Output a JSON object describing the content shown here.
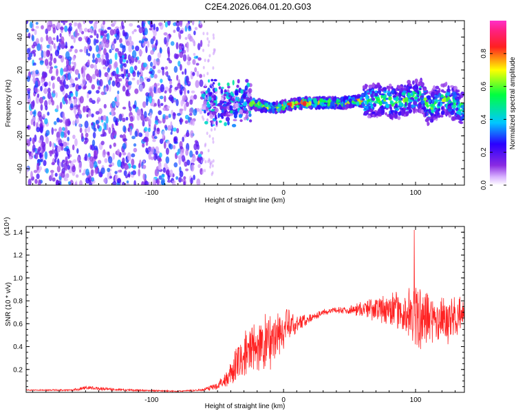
{
  "title": "C2E4.2026.064.01.20.G03",
  "colors": {
    "snr_line": "#ff2222",
    "spectral_blue": "#3c00d8",
    "spectral_purple": "#8a3cff",
    "axis": "#000000"
  },
  "chart_data": [
    {
      "type": "heatmap",
      "title": "C2E4.2026.064.01.20.G03",
      "xlabel": "Height of straight line (km)",
      "ylabel": "Frequency (Hz)",
      "xlim": [
        -195,
        137
      ],
      "ylim": [
        -50,
        50
      ],
      "x_ticks": [
        -100,
        0,
        100
      ],
      "x_tick_labels": [
        "-100",
        "0",
        "100"
      ],
      "y_ticks": [
        -40,
        -20,
        0,
        20,
        40
      ],
      "y_tick_labels": [
        "-40",
        "-20",
        "0",
        "20",
        "40"
      ],
      "colorbar": {
        "label": "Normalized spectral amplitude",
        "range": [
          0,
          1
        ],
        "ticks": [
          0.0,
          0.2,
          0.4,
          0.6,
          0.8
        ],
        "tick_labels": [
          "0.0",
          "0.2",
          "0.4",
          "0.6",
          "0.8"
        ],
        "colormap": "rainbow (magenta-blue-cyan-green-yellow-red)"
      },
      "regions": [
        {
          "x_range": [
            -195,
            -62
          ],
          "description": "broadband scattered noise",
          "freq_spread": [
            -50,
            50
          ],
          "peak_amplitude": 0.35
        },
        {
          "x_range": [
            -62,
            -25
          ],
          "description": "concentrated noise around zero",
          "freq_spread": [
            -12,
            14
          ],
          "peak_amplitude": 0.45
        },
        {
          "x_range": [
            -25,
            60
          ],
          "description": "coherent signal line near 0 Hz",
          "freq_spread": [
            -3,
            3
          ],
          "peak_amplitude": 1.0
        },
        {
          "x_range": [
            60,
            137
          ],
          "description": "wavering signal with increasing spread",
          "freq_spread": [
            -12,
            14
          ],
          "peak_amplitude": 0.7
        }
      ],
      "ridge": {
        "x": [
          -25,
          -15,
          -5,
          5,
          15,
          25,
          35,
          45,
          55,
          65,
          75,
          85,
          95,
          105,
          110,
          115,
          125,
          135
        ],
        "freq": [
          0,
          -2,
          -3,
          -1,
          0,
          0,
          0,
          0,
          1,
          1,
          2,
          0,
          3,
          5,
          -4,
          0,
          2,
          -3
        ]
      }
    },
    {
      "type": "line",
      "xlabel": "Height of straight line (km)",
      "ylabel": "SNR (10 * v/v)",
      "scale_label": "(x10⁴)",
      "xlim": [
        -195,
        137
      ],
      "ylim": [
        0,
        1.45
      ],
      "x_ticks": [
        -100,
        0,
        100
      ],
      "x_tick_labels": [
        "-100",
        "0",
        "100"
      ],
      "y_ticks": [
        0.2,
        0.4,
        0.6,
        0.8,
        1.0,
        1.2,
        1.4
      ],
      "y_tick_labels": [
        "0.2",
        "0.4",
        "0.6",
        "0.8",
        "1.0",
        "1.2",
        "1.4"
      ],
      "series": [
        {
          "color": "#ff2222",
          "envelope": {
            "x": [
              -195,
              -160,
              -150,
              -120,
              -80,
              -62,
              -50,
              -40,
              -35,
              -30,
              -20,
              -10,
              0,
              10,
              20,
              30,
              40,
              50,
              60,
              70,
              80,
              90,
              100,
              110,
              120,
              130,
              137
            ],
            "mean": [
              0.02,
              0.02,
              0.04,
              0.02,
              0.01,
              0.02,
              0.06,
              0.15,
              0.25,
              0.32,
              0.4,
              0.45,
              0.55,
              0.6,
              0.65,
              0.7,
              0.72,
              0.72,
              0.73,
              0.73,
              0.72,
              0.7,
              0.66,
              0.64,
              0.63,
              0.65,
              0.68
            ],
            "amp": [
              0.005,
              0.01,
              0.02,
              0.01,
              0.005,
              0.01,
              0.04,
              0.12,
              0.2,
              0.22,
              0.3,
              0.28,
              0.22,
              0.1,
              0.04,
              0.03,
              0.03,
              0.04,
              0.08,
              0.12,
              0.15,
              0.2,
              0.3,
              0.3,
              0.25,
              0.2,
              0.15
            ]
          },
          "peak_max": 1.42
        }
      ]
    }
  ]
}
